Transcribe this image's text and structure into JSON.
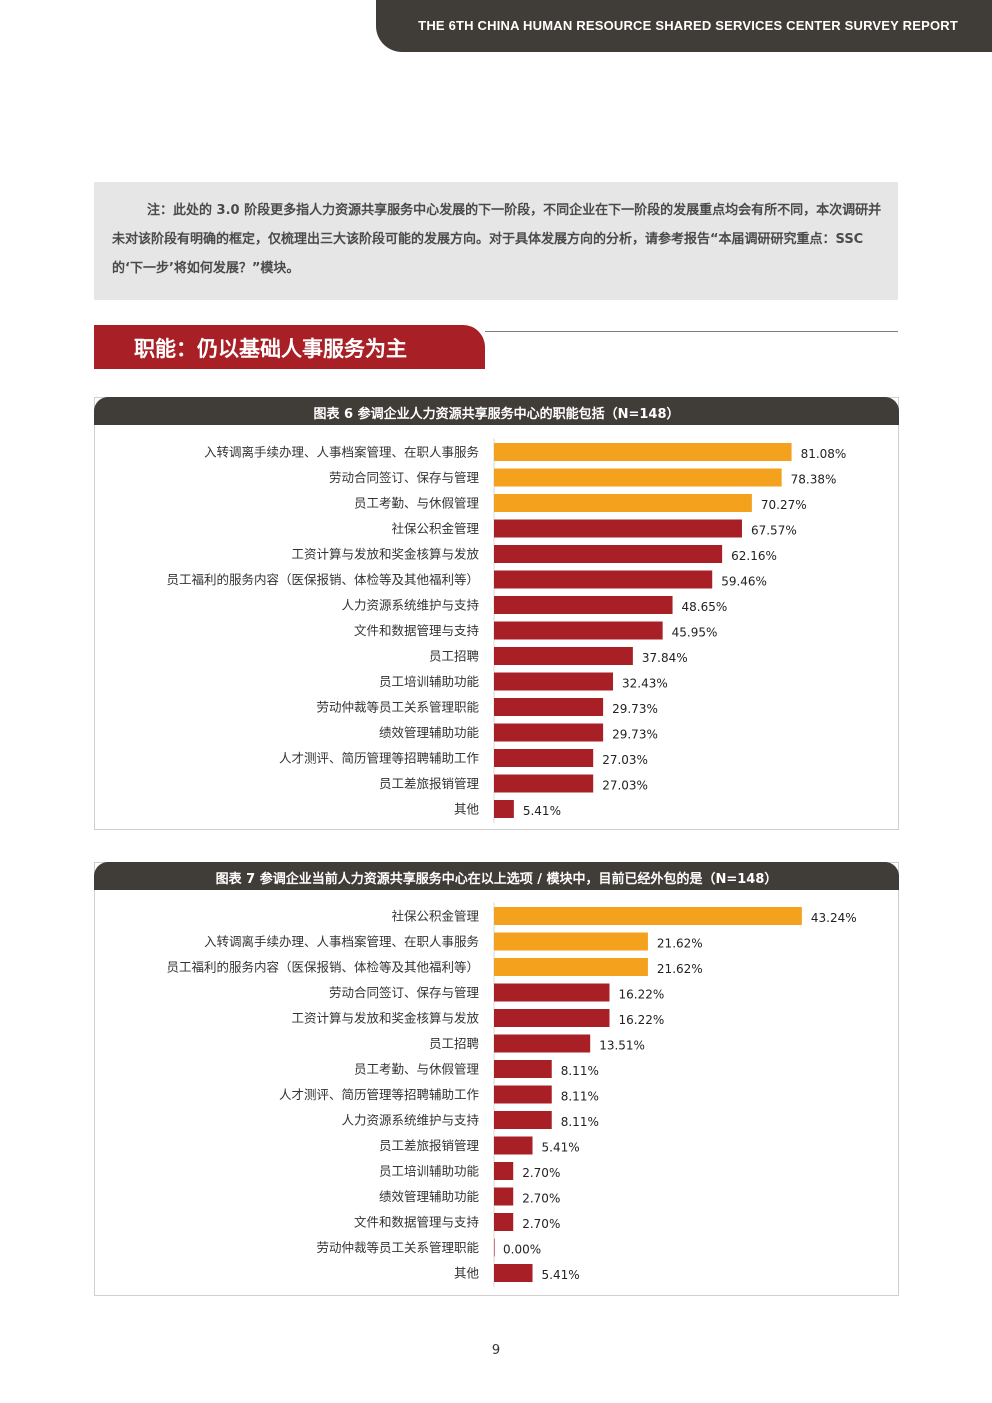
{
  "header": {
    "report_title": "THE 6TH CHINA HUMAN RESOURCE SHARED SERVICES CENTER SURVEY REPORT"
  },
  "note": {
    "text": "注：此处的 3.0 阶段更多指人力资源共享服务中心发展的下一阶段，不同企业在下一阶段的发展重点均会有所不同，本次调研并未对该阶段有明确的框定，仅梳理出三大该阶段可能的发展方向。对于具体发展方向的分析，请参考报告“本届调研研究重点：SSC 的‘下一步’将如何发展？”模块。"
  },
  "section": {
    "heading": "职能：仍以基础人事服务为主"
  },
  "colors": {
    "highlight": "#f4a21e",
    "primary": "#a91f26",
    "header": "#403c38"
  },
  "chart_data": [
    {
      "type": "bar",
      "orientation": "horizontal",
      "title": "图表 6 参调企业人力资源共享服务中心的职能包括（N=148）",
      "categories": [
        "入转调离手续办理、人事档案管理、在职人事服务",
        "劳动合同签订、保存与管理",
        "员工考勤、与休假管理",
        "社保公积金管理",
        "工资计算与发放和奖金核算与发放",
        "员工福利的服务内容（医保报销、体检等及其他福利等）",
        "人力资源系统维护与支持",
        "文件和数据管理与支持",
        "员工招聘",
        "员工培训辅助功能",
        "劳动仲裁等员工关系管理职能",
        "绩效管理辅助功能",
        "人才测评、简历管理等招聘辅助工作",
        "员工差旅报销管理",
        "其他"
      ],
      "values": [
        81.08,
        78.38,
        70.27,
        67.57,
        62.16,
        59.46,
        48.65,
        45.95,
        37.84,
        32.43,
        29.73,
        29.73,
        27.03,
        27.03,
        5.41
      ],
      "value_labels": [
        "81.08%",
        "78.38%",
        "70.27%",
        "67.57%",
        "62.16%",
        "59.46%",
        "48.65%",
        "45.95%",
        "37.84%",
        "32.43%",
        "29.73%",
        "29.73%",
        "27.03%",
        "27.03%",
        "5.41%"
      ],
      "highlighted_count": 3,
      "unit": "%",
      "grid": false
    },
    {
      "type": "bar",
      "orientation": "horizontal",
      "title": "图表 7 参调企业当前人力资源共享服务中心在以上选项 / 模块中，目前已经外包的是（N=148）",
      "categories": [
        "社保公积金管理",
        "入转调离手续办理、人事档案管理、在职人事服务",
        "员工福利的服务内容（医保报销、体检等及其他福利等）",
        "劳动合同签订、保存与管理",
        "工资计算与发放和奖金核算与发放",
        "员工招聘",
        "员工考勤、与休假管理",
        "人才测评、简历管理等招聘辅助工作",
        "人力资源系统维护与支持",
        "员工差旅报销管理",
        "员工培训辅助功能",
        "绩效管理辅助功能",
        "文件和数据管理与支持",
        "劳动仲裁等员工关系管理职能",
        "其他"
      ],
      "values": [
        43.24,
        21.62,
        21.62,
        16.22,
        16.22,
        13.51,
        8.11,
        8.11,
        8.11,
        5.41,
        2.7,
        2.7,
        2.7,
        0.0,
        5.41
      ],
      "value_labels": [
        "43.24%",
        "21.62%",
        "21.62%",
        "16.22%",
        "16.22%",
        "13.51%",
        "8.11%",
        "8.11%",
        "8.11%",
        "5.41%",
        "2.70%",
        "2.70%",
        "2.70%",
        "0.00%",
        "5.41%"
      ],
      "highlighted_count": 3,
      "unit": "%",
      "grid": false
    }
  ],
  "footer": {
    "page_number": "9"
  }
}
